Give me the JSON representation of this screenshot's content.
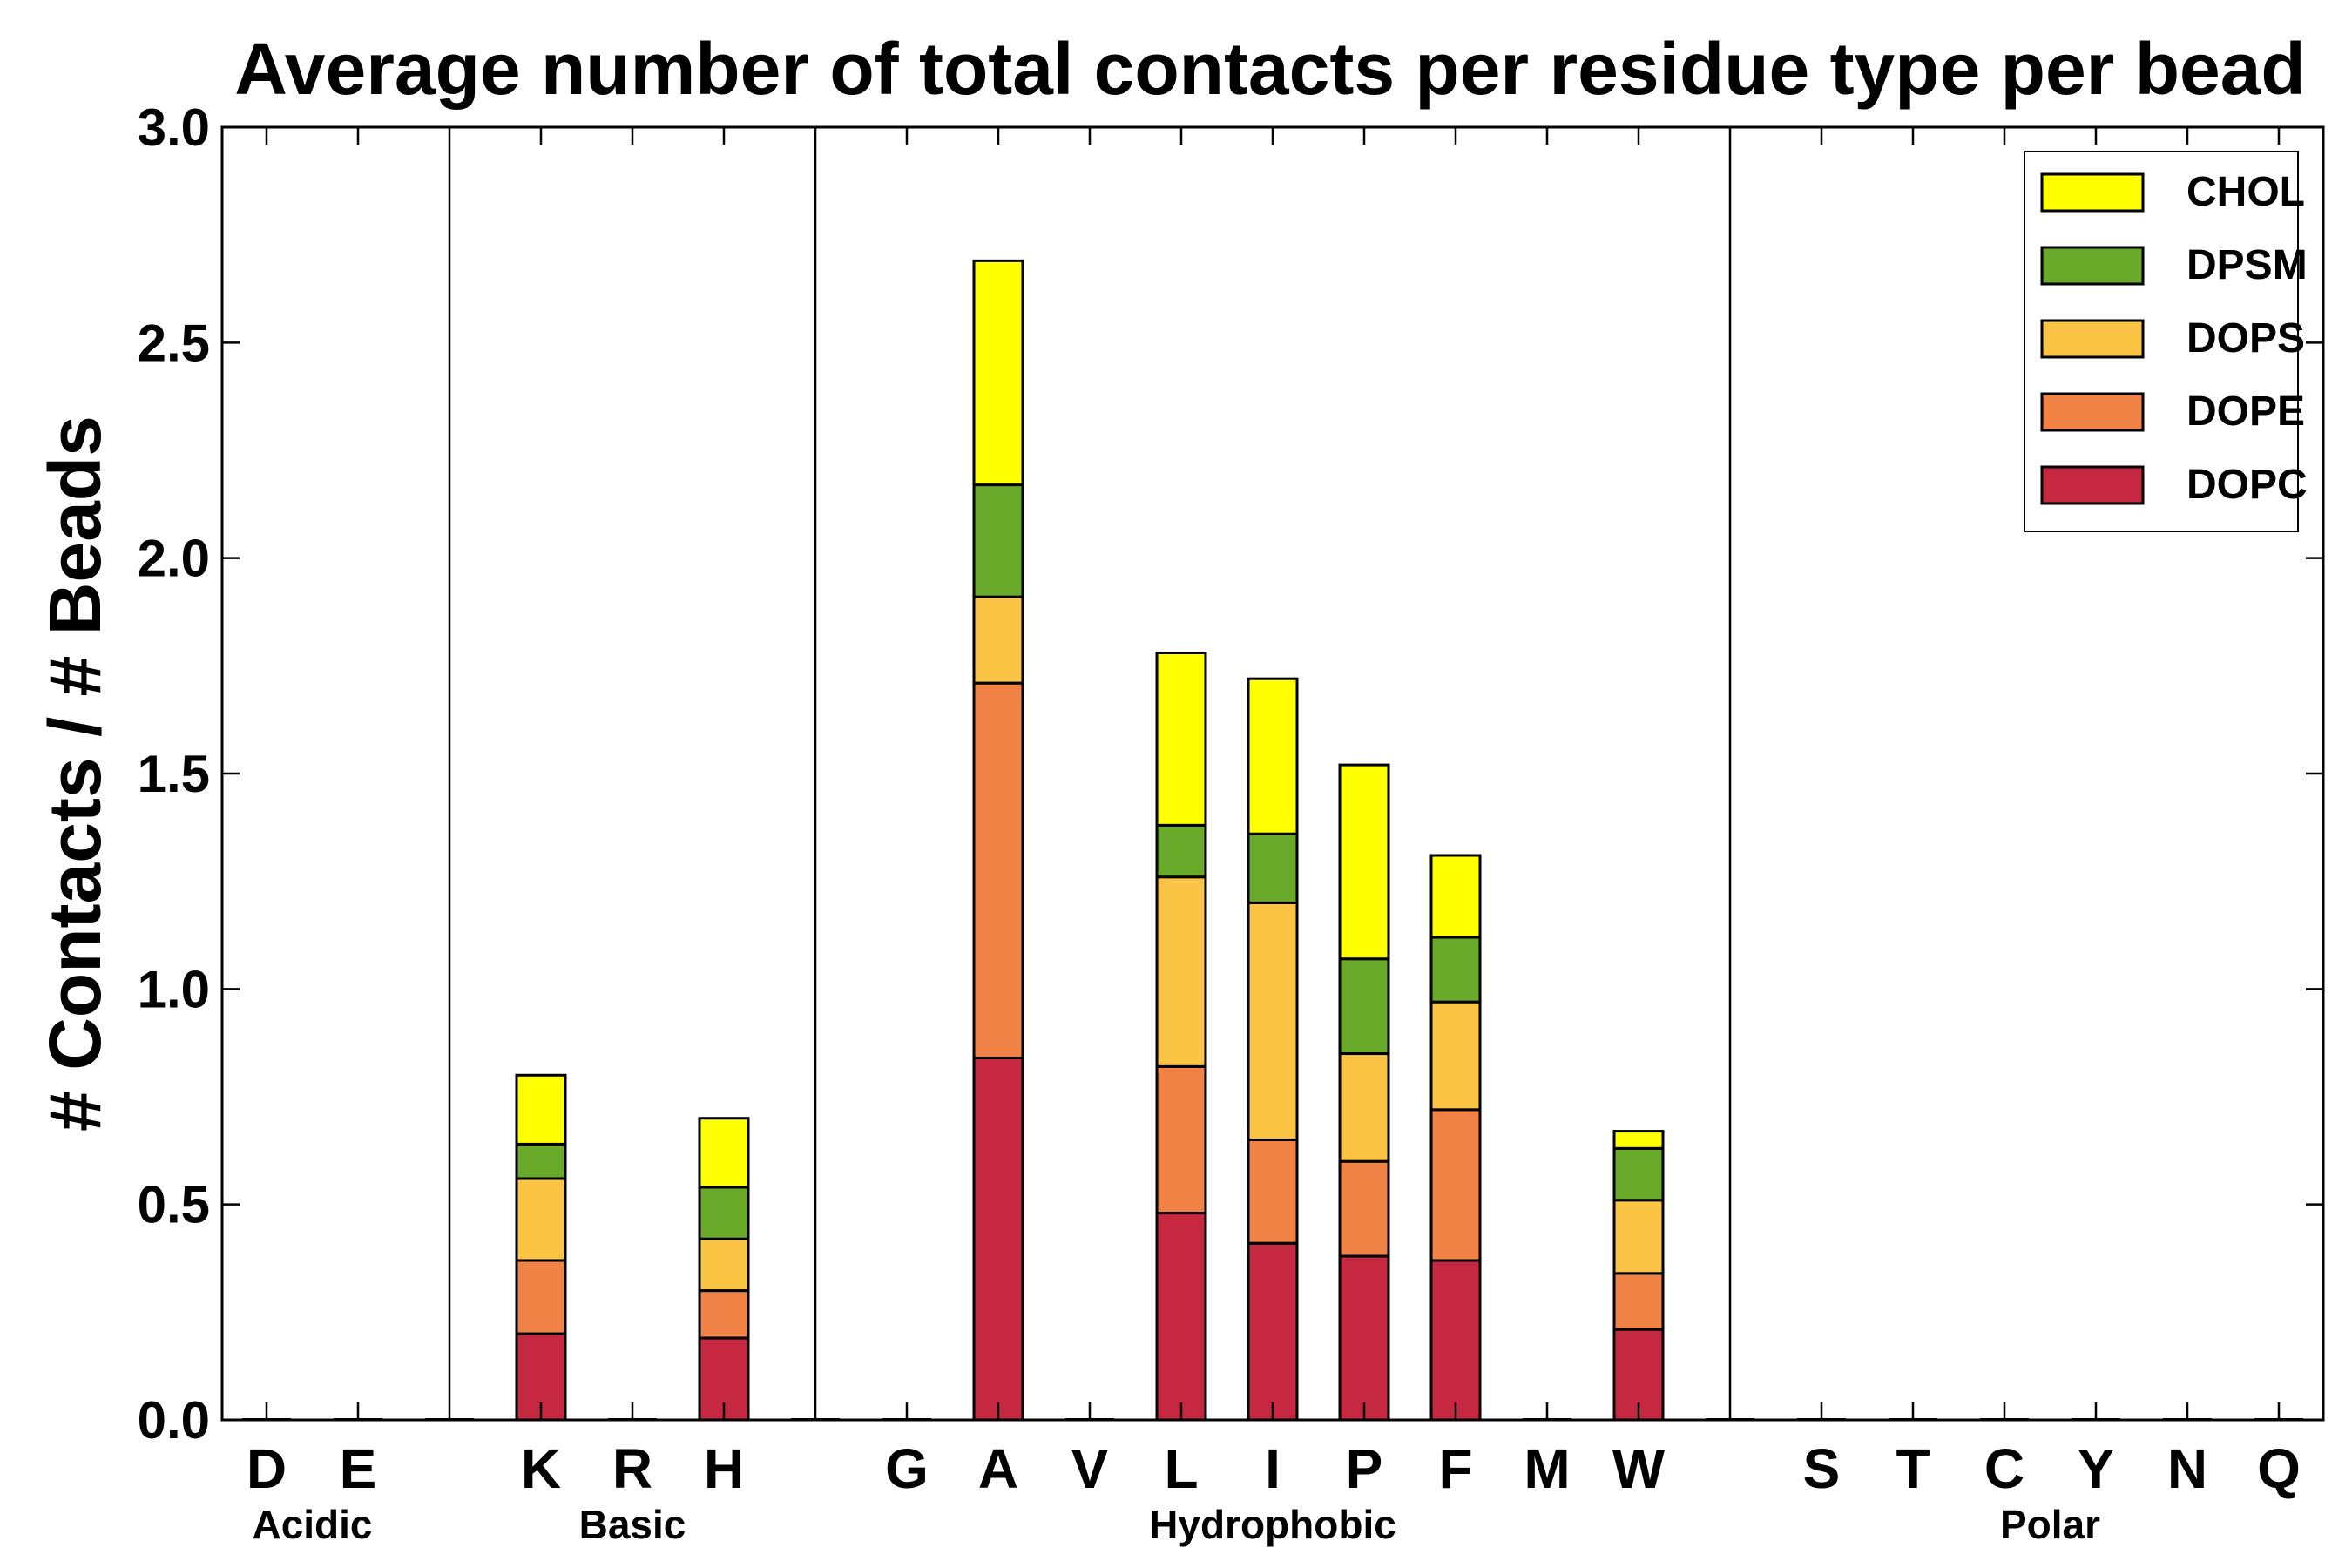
{
  "chart_data": {
    "type": "bar",
    "stacked": true,
    "title": "Average number of total contacts per residue type per bead",
    "xlabel": "",
    "ylabel": "# Contacts / # Beads",
    "ylim": [
      0,
      3.0
    ],
    "yticks": [
      "0.0",
      "0.5",
      "1.0",
      "1.5",
      "2.0",
      "2.5",
      "3.0"
    ],
    "categories": [
      "D",
      "E",
      "K",
      "R",
      "H",
      "G",
      "A",
      "V",
      "L",
      "I",
      "P",
      "F",
      "M",
      "W",
      "S",
      "T",
      "C",
      "Y",
      "N",
      "Q"
    ],
    "groups": [
      {
        "name": "Acidic",
        "members": [
          "D",
          "E"
        ]
      },
      {
        "name": "Basic",
        "members": [
          "K",
          "R",
          "H"
        ]
      },
      {
        "name": "Hydrophobic",
        "members": [
          "G",
          "A",
          "V",
          "L",
          "I",
          "P",
          "F",
          "M",
          "W"
        ]
      },
      {
        "name": "Polar",
        "members": [
          "S",
          "T",
          "C",
          "Y",
          "N",
          "Q"
        ]
      }
    ],
    "series": [
      {
        "name": "DOPC",
        "color": "#c62842",
        "values": [
          0,
          0,
          0.2,
          0,
          0.19,
          0,
          0.84,
          0,
          0.48,
          0.41,
          0.38,
          0.37,
          0,
          0.21,
          0,
          0,
          0,
          0,
          0,
          0
        ]
      },
      {
        "name": "DOPE",
        "color": "#ef8244",
        "values": [
          0,
          0,
          0.17,
          0,
          0.11,
          0,
          0.87,
          0,
          0.34,
          0.24,
          0.22,
          0.35,
          0,
          0.13,
          0,
          0,
          0,
          0,
          0,
          0
        ]
      },
      {
        "name": "DOPS",
        "color": "#fcc444",
        "values": [
          0,
          0,
          0.19,
          0,
          0.12,
          0,
          0.2,
          0,
          0.44,
          0.55,
          0.25,
          0.25,
          0,
          0.17,
          0,
          0,
          0,
          0,
          0,
          0
        ]
      },
      {
        "name": "DPSM",
        "color": "#6aaa2a",
        "values": [
          0,
          0,
          0.08,
          0,
          0.12,
          0,
          0.26,
          0,
          0.12,
          0.16,
          0.22,
          0.15,
          0,
          0.12,
          0,
          0,
          0,
          0,
          0,
          0
        ]
      },
      {
        "name": "CHOL",
        "color": "#ffff00",
        "values": [
          0,
          0,
          0.16,
          0,
          0.16,
          0,
          0.52,
          0,
          0.4,
          0.36,
          0.45,
          0.19,
          0,
          0.04,
          0,
          0,
          0,
          0,
          0,
          0
        ]
      }
    ],
    "legend": {
      "position": "top-right",
      "order": [
        "CHOL",
        "DPSM",
        "DOPS",
        "DOPE",
        "DOPC"
      ]
    }
  }
}
